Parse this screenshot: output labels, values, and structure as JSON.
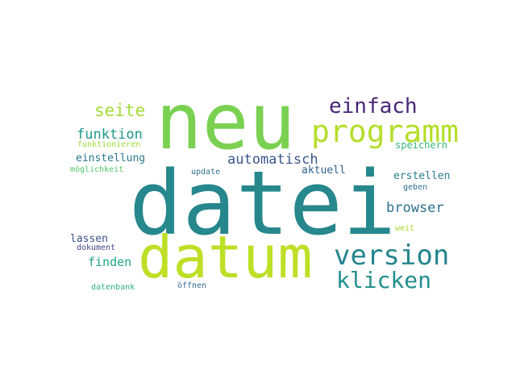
{
  "word_cloud": {
    "words": [
      {
        "text": "datei",
        "color": "#26878d"
      },
      {
        "text": "neu",
        "color": "#7ad151"
      },
      {
        "text": "datum",
        "color": "#bddf26"
      },
      {
        "text": "programm",
        "color": "#b5de2b"
      },
      {
        "text": "version",
        "color": "#25858e"
      },
      {
        "text": "einfach",
        "color": "#482677"
      },
      {
        "text": "klicken",
        "color": "#218f8d"
      },
      {
        "text": "seite",
        "color": "#a5db36"
      },
      {
        "text": "funktion",
        "color": "#1f968b"
      },
      {
        "text": "automatisch",
        "color": "#39568c"
      },
      {
        "text": "browser",
        "color": "#2d708e"
      },
      {
        "text": "finden",
        "color": "#20a386"
      },
      {
        "text": "einstellung",
        "color": "#2a788e"
      },
      {
        "text": "aktuell",
        "color": "#33638d"
      },
      {
        "text": "erstellen",
        "color": "#287d8e"
      },
      {
        "text": "speichern",
        "color": "#35b779"
      },
      {
        "text": "lassen",
        "color": "#3b528b"
      },
      {
        "text": "funktionieren",
        "color": "#a0da39"
      },
      {
        "text": "möglichkeit",
        "color": "#54c568"
      },
      {
        "text": "update",
        "color": "#2c728e"
      },
      {
        "text": "geben",
        "color": "#2e6f8e"
      },
      {
        "text": "dokument",
        "color": "#414487"
      },
      {
        "text": "weit",
        "color": "#addc30"
      },
      {
        "text": "datenbank",
        "color": "#29af7f"
      },
      {
        "text": "öffnen",
        "color": "#32648e"
      }
    ]
  }
}
